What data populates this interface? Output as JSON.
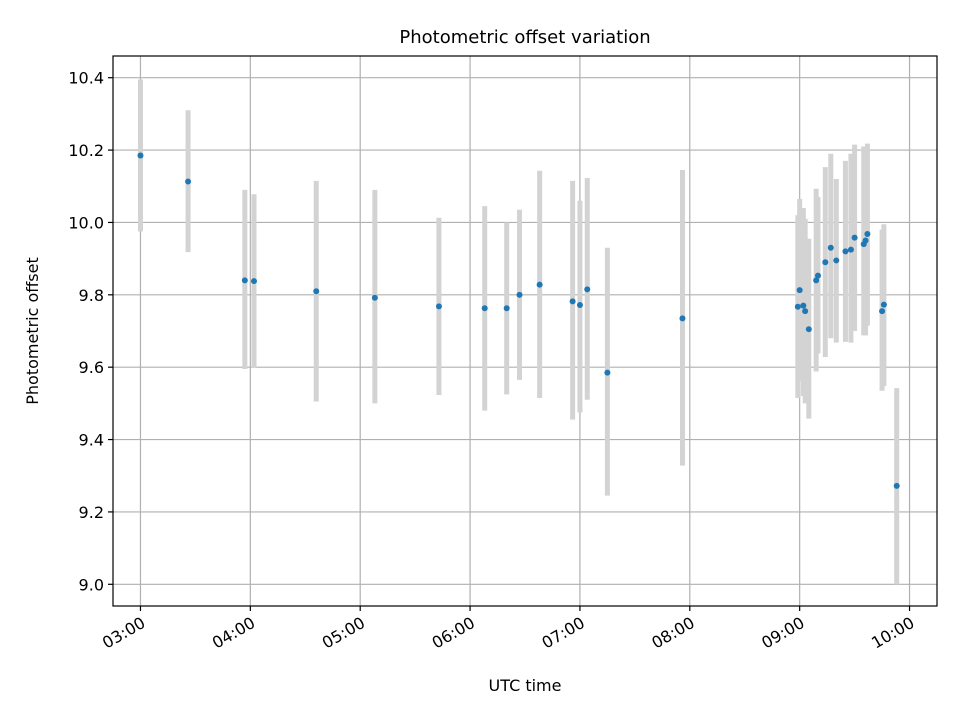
{
  "chart_data": {
    "type": "scatter",
    "title": "Photometric offset variation",
    "xlabel": "UTC time",
    "ylabel": "Photometric offset",
    "xlim": [
      "02:45",
      "10:15"
    ],
    "ylim": [
      8.94,
      10.46
    ],
    "x_ticks": [
      "03:00",
      "04:00",
      "05:00",
      "06:00",
      "07:00",
      "08:00",
      "09:00",
      "10:00"
    ],
    "y_ticks": [
      "9.0",
      "9.2",
      "9.4",
      "9.6",
      "9.8",
      "10.0",
      "10.2",
      "10.4"
    ],
    "grid": true,
    "colors": {
      "marker": "#1f77b4",
      "errorbar": "#d3d3d3",
      "grid": "#b0b0b0",
      "axes": "#000000"
    },
    "points": [
      {
        "x": "03:00",
        "y": 10.185,
        "err_low": 9.975,
        "err_high": 10.395
      },
      {
        "x": "03:26",
        "y": 10.113,
        "err_low": 9.918,
        "err_high": 10.31
      },
      {
        "x": "03:57",
        "y": 9.84,
        "err_low": 9.595,
        "err_high": 10.09
      },
      {
        "x": "04:02",
        "y": 9.838,
        "err_low": 9.598,
        "err_high": 10.078
      },
      {
        "x": "04:36",
        "y": 9.81,
        "err_low": 9.505,
        "err_high": 10.115
      },
      {
        "x": "05:08",
        "y": 9.792,
        "err_low": 9.5,
        "err_high": 10.09
      },
      {
        "x": "05:43",
        "y": 9.768,
        "err_low": 9.523,
        "err_high": 10.013
      },
      {
        "x": "06:08",
        "y": 9.763,
        "err_low": 9.48,
        "err_high": 10.045
      },
      {
        "x": "06:20",
        "y": 9.763,
        "err_low": 9.525,
        "err_high": 10.0
      },
      {
        "x": "06:27",
        "y": 9.8,
        "err_low": 9.565,
        "err_high": 10.035
      },
      {
        "x": "06:38",
        "y": 9.828,
        "err_low": 9.515,
        "err_high": 10.143
      },
      {
        "x": "06:56",
        "y": 9.782,
        "err_low": 9.455,
        "err_high": 10.115
      },
      {
        "x": "07:00",
        "y": 9.772,
        "err_low": 9.475,
        "err_high": 10.06
      },
      {
        "x": "07:04",
        "y": 9.815,
        "err_low": 9.51,
        "err_high": 10.123
      },
      {
        "x": "07:15",
        "y": 9.585,
        "err_low": 9.245,
        "err_high": 9.93
      },
      {
        "x": "07:56",
        "y": 9.735,
        "err_low": 9.328,
        "err_high": 10.145
      },
      {
        "x": "08:59",
        "y": 9.767,
        "err_low": 9.515,
        "err_high": 10.02
      },
      {
        "x": "09:00",
        "y": 9.813,
        "err_low": 9.562,
        "err_high": 10.065
      },
      {
        "x": "09:02",
        "y": 9.77,
        "err_low": 9.52,
        "err_high": 10.04
      },
      {
        "x": "09:03",
        "y": 9.755,
        "err_low": 9.5,
        "err_high": 10.01
      },
      {
        "x": "09:05",
        "y": 9.705,
        "err_low": 9.458,
        "err_high": 9.955
      },
      {
        "x": "09:09",
        "y": 9.84,
        "err_low": 9.588,
        "err_high": 10.093
      },
      {
        "x": "09:10",
        "y": 9.853,
        "err_low": 9.638,
        "err_high": 10.07
      },
      {
        "x": "09:14",
        "y": 9.89,
        "err_low": 9.628,
        "err_high": 10.153
      },
      {
        "x": "09:17",
        "y": 9.93,
        "err_low": 9.68,
        "err_high": 10.19
      },
      {
        "x": "09:20",
        "y": 9.895,
        "err_low": 9.668,
        "err_high": 10.12
      },
      {
        "x": "09:25",
        "y": 9.92,
        "err_low": 9.67,
        "err_high": 10.17
      },
      {
        "x": "09:28",
        "y": 9.925,
        "err_low": 9.668,
        "err_high": 10.19
      },
      {
        "x": "09:30",
        "y": 9.958,
        "err_low": 9.7,
        "err_high": 10.215
      },
      {
        "x": "09:35",
        "y": 9.94,
        "err_low": 9.688,
        "err_high": 10.21
      },
      {
        "x": "09:36",
        "y": 9.95,
        "err_low": 9.688,
        "err_high": 10.21
      },
      {
        "x": "09:37",
        "y": 9.968,
        "err_low": 9.715,
        "err_high": 10.218
      },
      {
        "x": "09:45",
        "y": 9.755,
        "err_low": 9.535,
        "err_high": 9.98
      },
      {
        "x": "09:46",
        "y": 9.773,
        "err_low": 9.548,
        "err_high": 9.995
      },
      {
        "x": "09:53",
        "y": 9.272,
        "err_low": 9.0,
        "err_high": 9.542
      }
    ]
  }
}
